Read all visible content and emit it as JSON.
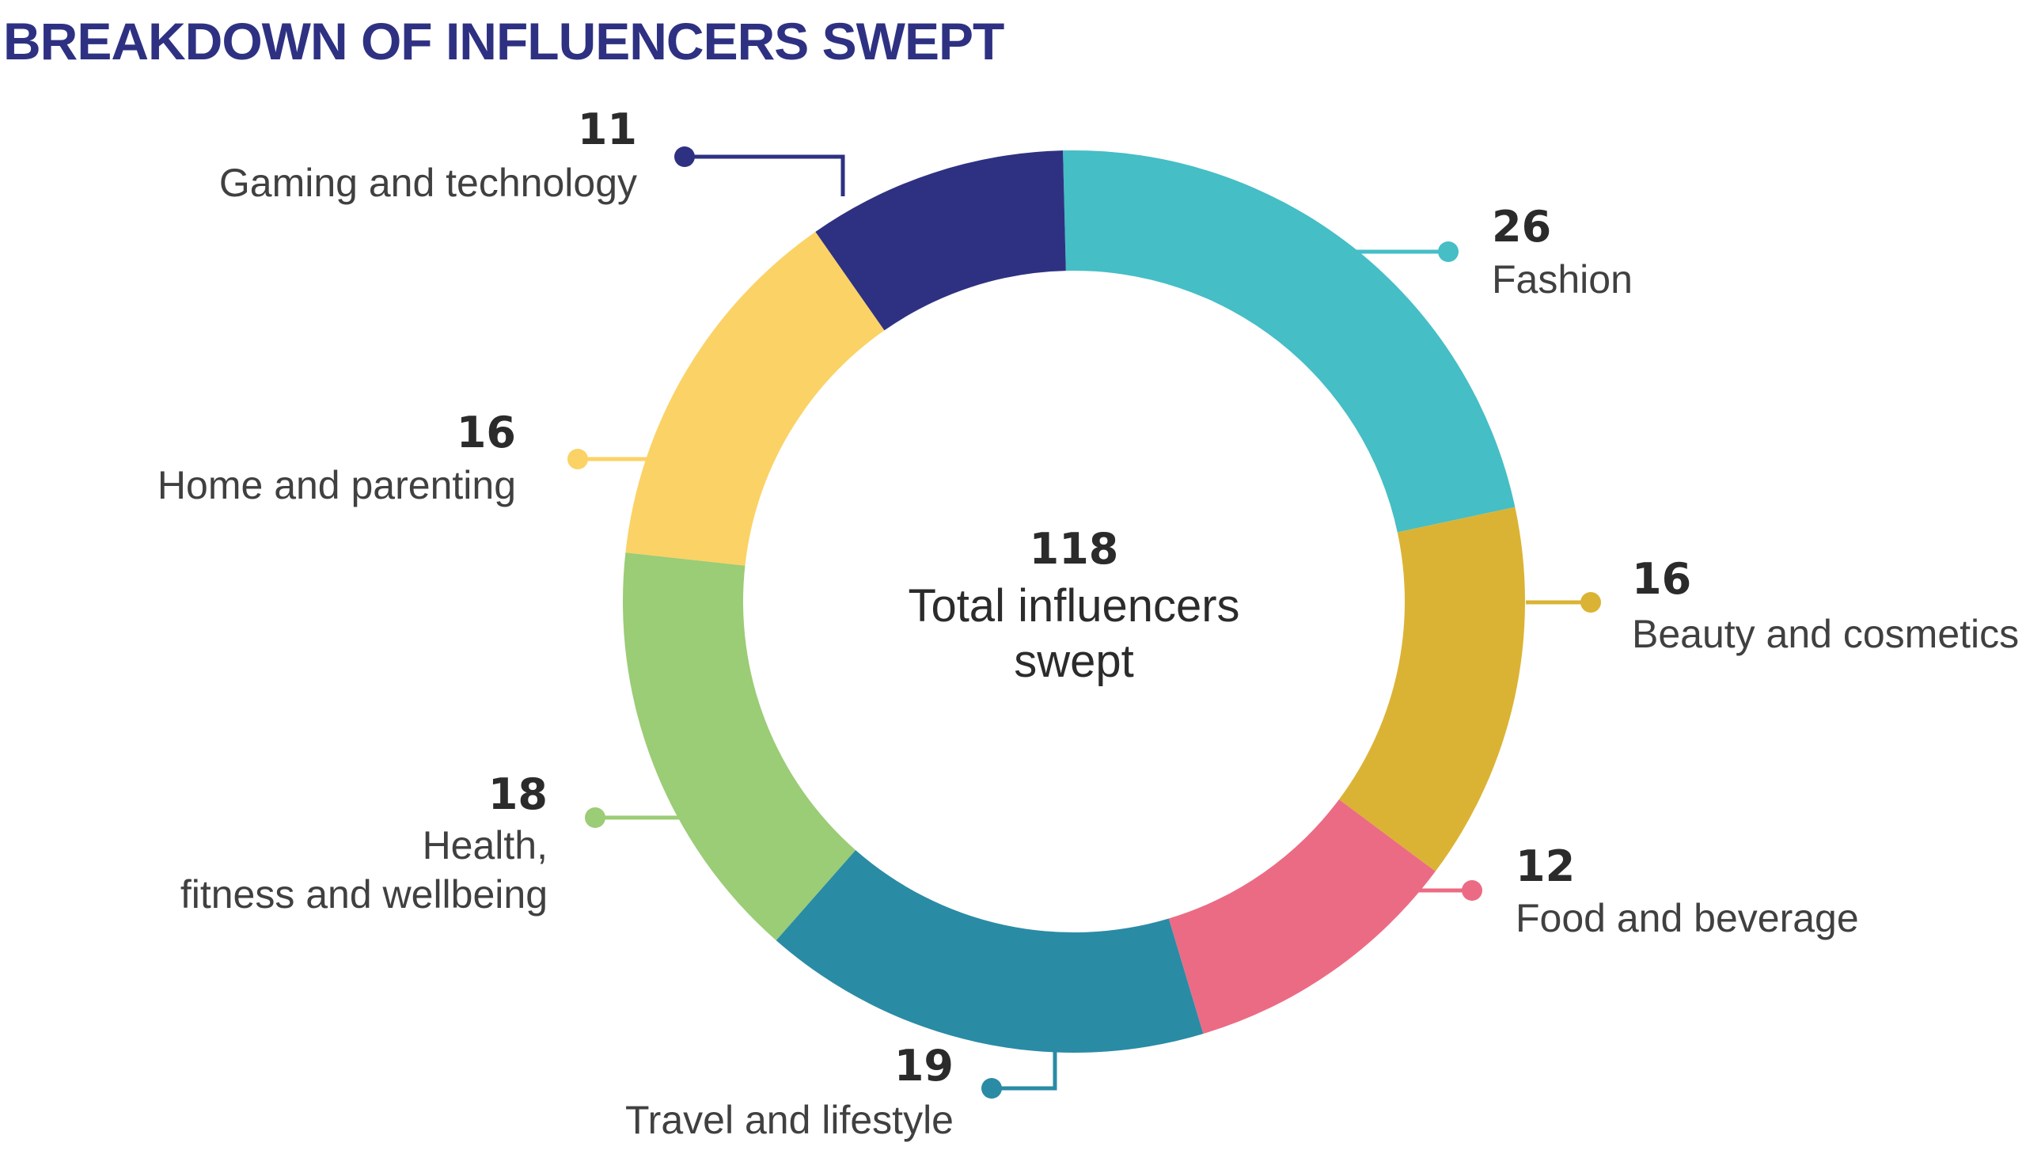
{
  "title": "BREAKDOWN OF INFLUENCERS SWEPT",
  "center": {
    "total": "118",
    "label_line1": "Total influencers",
    "label_line2": "swept"
  },
  "chart_data": {
    "type": "pie",
    "title": "BREAKDOWN OF INFLUENCERS SWEPT",
    "total": 118,
    "slices": [
      {
        "label": "Fashion",
        "value": 26,
        "color": "#45bec6"
      },
      {
        "label": "Beauty and cosmetics",
        "value": 16,
        "color": "#dbb334"
      },
      {
        "label": "Food and beverage",
        "value": 12,
        "color": "#ec6b84"
      },
      {
        "label": "Travel and lifestyle",
        "value": 19,
        "color": "#2a8ba5"
      },
      {
        "label": "Health, fitness and wellbeing",
        "value": 18,
        "color": "#9bcc76"
      },
      {
        "label": "Home and parenting",
        "value": 16,
        "color": "#fbd265"
      },
      {
        "label": "Gaming and technology",
        "value": 11,
        "color": "#2e3182"
      }
    ]
  }
}
